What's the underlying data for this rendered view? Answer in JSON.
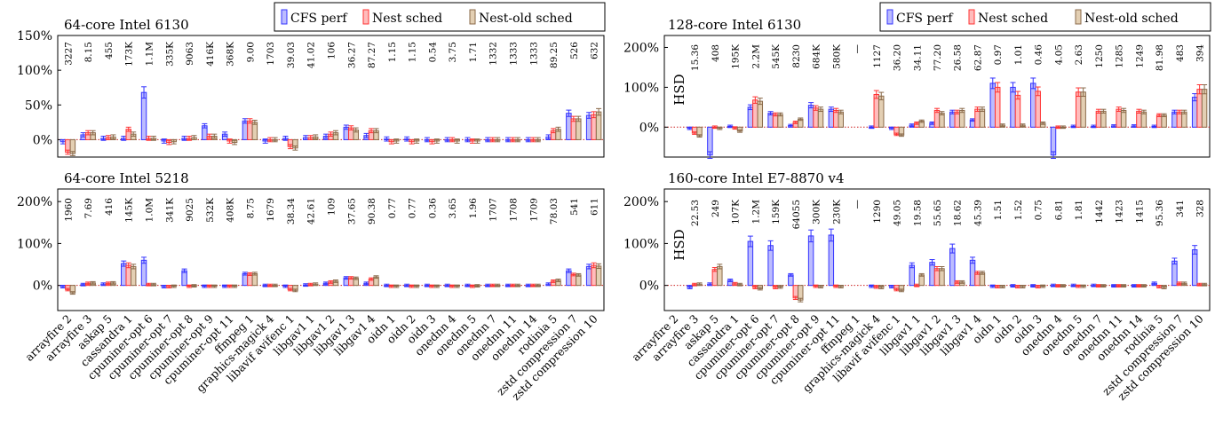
{
  "legend": {
    "items": [
      {
        "label": "CFS perf",
        "color": "#3333ff",
        "fill": "#bcbcff"
      },
      {
        "label": "Nest sched",
        "color": "#ff3333",
        "fill": "#ffbcbc"
      },
      {
        "label": "Nest-old sched",
        "color": "#8a6a4a",
        "fill": "#e3cfb3"
      }
    ]
  },
  "chart_data": [
    {
      "type": "bar",
      "title": "64-core Intel 6130",
      "ylim": [
        -25,
        150
      ],
      "yticks": [
        "150%",
        "100%",
        "50%",
        "0%"
      ],
      "categories": [
        "arrayfire 2",
        "arrayfire 3",
        "askap 5",
        "cassandra 1",
        "cpuminer-opt 6",
        "cpuminer-opt 7",
        "cpuminer-opt 8",
        "cpuminer-opt 9",
        "cpuminer-opt 11",
        "ffmpeg 1",
        "graphics-magick 4",
        "libavif avifenc 1",
        "libgav1 1",
        "libgav1 2",
        "libgav1 3",
        "libgav1 4",
        "oidn 1",
        "oidn 2",
        "oidn 3",
        "onednn 4",
        "onednn 5",
        "onednn 7",
        "onednn 11",
        "onednn 14",
        "rodinia 5",
        "zstd compression 7",
        "zstd compression 10"
      ],
      "value_labels": [
        "3227",
        "8.15",
        "455",
        "173K",
        "1.1M",
        "335K",
        "9063",
        "416K",
        "368K",
        "9.00",
        "1703",
        "39.03",
        "41.02",
        "106",
        "36.27",
        "87.27",
        "1.15",
        "1.15",
        "0.54",
        "3.75",
        "1.71",
        "1332",
        "1333",
        "1333",
        "89.25",
        "526",
        "632"
      ],
      "series": [
        {
          "name": "CFS perf",
          "values": [
            -3,
            7,
            2,
            2,
            68,
            -2,
            2,
            20,
            8,
            27,
            -2,
            2,
            3,
            5,
            18,
            6,
            1,
            1,
            0,
            0,
            0,
            0,
            0,
            0,
            4,
            38,
            35
          ]
        },
        {
          "name": "Nest sched",
          "values": [
            -18,
            10,
            3,
            15,
            2,
            -4,
            2,
            5,
            -2,
            27,
            0,
            -10,
            3,
            8,
            17,
            13,
            -3,
            -3,
            -3,
            0,
            -2,
            0,
            0,
            0,
            13,
            30,
            36
          ]
        },
        {
          "name": "Nest-old sched",
          "values": [
            -20,
            10,
            4,
            8,
            2,
            -3,
            3,
            5,
            -4,
            25,
            0,
            -12,
            4,
            10,
            14,
            13,
            -2,
            -2,
            -2,
            -2,
            -2,
            0,
            0,
            0,
            15,
            30,
            40
          ]
        }
      ]
    },
    {
      "type": "bar",
      "title": "128-core Intel 6130",
      "ylim": [
        -75,
        230
      ],
      "yticks": [
        "200%",
        "100%",
        "0%"
      ],
      "categories": [
        "arrayfire 2",
        "arrayfire 3",
        "askap 5",
        "cassandra 1",
        "cpuminer-opt 6",
        "cpuminer-opt 7",
        "cpuminer-opt 8",
        "cpuminer-opt 9",
        "cpuminer-opt 11",
        "ffmpeg 1",
        "graphics-magick 4",
        "libavif avifenc 1",
        "libgav1 1",
        "libgav1 2",
        "libgav1 3",
        "libgav1 4",
        "oidn 1",
        "oidn 2",
        "oidn 3",
        "onednn 4",
        "onednn 5",
        "onednn 7",
        "onednn 11",
        "onednn 14",
        "rodinia 5",
        "zstd compression 7",
        "zstd compression 10"
      ],
      "value_labels": [
        "HSD",
        "15.36",
        "408",
        "195K",
        "2.2M",
        "545K",
        "8230",
        "684K",
        "580K",
        "—",
        "1127",
        "36.20",
        "34.11",
        "77.20",
        "26.58",
        "62.87",
        "0.97",
        "1.01",
        "0.46",
        "4.05",
        "2.63",
        "1250",
        "1285",
        "1249",
        "81.98",
        "483",
        "394"
      ],
      "series": [
        {
          "name": "CFS perf",
          "values": [
            null,
            -3,
            -70,
            2,
            50,
            35,
            4,
            55,
            45,
            null,
            0,
            -3,
            5,
            10,
            38,
            18,
            110,
            100,
            110,
            -70,
            2,
            2,
            3,
            3,
            2,
            38,
            75
          ]
        },
        {
          "name": "Nest sched",
          "values": [
            null,
            -15,
            0,
            -2,
            68,
            32,
            12,
            48,
            42,
            null,
            82,
            -18,
            10,
            42,
            38,
            45,
            100,
            80,
            90,
            0,
            88,
            40,
            45,
            40,
            30,
            38,
            95
          ]
        },
        {
          "name": "Nest-old sched",
          "values": [
            null,
            -22,
            -3,
            -10,
            65,
            32,
            20,
            45,
            38,
            null,
            78,
            -20,
            15,
            35,
            42,
            45,
            5,
            5,
            10,
            0,
            88,
            40,
            42,
            38,
            30,
            38,
            95
          ]
        }
      ]
    },
    {
      "type": "bar",
      "title": "64-core Intel 5218",
      "ylim": [
        -60,
        230
      ],
      "yticks": [
        "200%",
        "100%",
        "0%"
      ],
      "categories": [
        "arrayfire 2",
        "arrayfire 3",
        "askap 5",
        "cassandra 1",
        "cpuminer-opt 6",
        "cpuminer-opt 7",
        "cpuminer-opt 8",
        "cpuminer-opt 9",
        "cpuminer-opt 11",
        "ffmpeg 1",
        "graphics-magick 4",
        "libavif avifenc 1",
        "libgav1 1",
        "libgav1 2",
        "libgav1 3",
        "libgav1 4",
        "oidn 1",
        "oidn 2",
        "oidn 3",
        "onednn 4",
        "onednn 5",
        "onednn 7",
        "onednn 11",
        "onednn 14",
        "rodinia 5",
        "zstd compression 7",
        "zstd compression 10"
      ],
      "value_labels": [
        "1960",
        "7.69",
        "416",
        "145K",
        "1.0M",
        "341K",
        "9025",
        "532K",
        "408K",
        "8.75",
        "1679",
        "38.34",
        "42.61",
        "109",
        "37.65",
        "90.38",
        "0.77",
        "0.77",
        "0.36",
        "3.65",
        "1.96",
        "1707",
        "1708",
        "1709",
        "78.03",
        "541",
        "611"
      ],
      "series": [
        {
          "name": "CFS perf",
          "values": [
            -3,
            2,
            3,
            52,
            60,
            -3,
            35,
            -2,
            -2,
            28,
            0,
            -2,
            1,
            5,
            18,
            5,
            0,
            0,
            0,
            0,
            0,
            0,
            0,
            0,
            3,
            35,
            45
          ]
        },
        {
          "name": "Nest sched",
          "values": [
            -10,
            5,
            5,
            48,
            2,
            -3,
            -2,
            -2,
            -2,
            27,
            0,
            -10,
            2,
            8,
            18,
            15,
            -2,
            -2,
            -2,
            -2,
            -2,
            0,
            0,
            0,
            10,
            26,
            48
          ]
        },
        {
          "name": "Nest-old sched",
          "values": [
            -18,
            6,
            6,
            45,
            2,
            -2,
            -1,
            -2,
            -2,
            28,
            0,
            -12,
            3,
            10,
            17,
            20,
            -2,
            -2,
            -2,
            -2,
            -1,
            0,
            0,
            0,
            12,
            25,
            46
          ]
        }
      ]
    },
    {
      "type": "bar",
      "title": "160-core Intel E7-8870 v4",
      "ylim": [
        -60,
        230
      ],
      "yticks": [
        "200%",
        "100%",
        "0%"
      ],
      "categories": [
        "arrayfire 2",
        "arrayfire 3",
        "askap 5",
        "cassandra 1",
        "cpuminer-opt 6",
        "cpuminer-opt 7",
        "cpuminer-opt 8",
        "cpuminer-opt 9",
        "cpuminer-opt 11",
        "ffmpeg 1",
        "graphics-magick 4",
        "libavif avifenc 1",
        "libgav1 1",
        "libgav1 2",
        "libgav1 3",
        "libgav1 4",
        "oidn 1",
        "oidn 2",
        "oidn 3",
        "onednn 4",
        "onednn 5",
        "onednn 7",
        "onednn 11",
        "onednn 14",
        "rodinia 5",
        "zstd compression 7",
        "zstd compression 10"
      ],
      "value_labels": [
        "HSD",
        "22.53",
        "249",
        "107K",
        "1.2M",
        "159K",
        "64055",
        "300K",
        "230K",
        "—",
        "1290",
        "49.05",
        "19.58",
        "55.65",
        "18.62",
        "45.39",
        "1.51",
        "1.52",
        "0.75",
        "6.81",
        "1.81",
        "1442",
        "1423",
        "1415",
        "95.36",
        "341",
        "328"
      ],
      "series": [
        {
          "name": "CFS perf",
          "values": [
            null,
            -5,
            3,
            12,
            105,
            95,
            25,
            118,
            120,
            null,
            -2,
            -3,
            48,
            55,
            88,
            60,
            -2,
            -1,
            -1,
            0,
            0,
            0,
            -1,
            -1,
            5,
            58,
            85
          ]
        },
        {
          "name": "Nest sched",
          "values": [
            null,
            2,
            38,
            4,
            -5,
            -5,
            -30,
            -2,
            -2,
            null,
            -4,
            -10,
            0,
            40,
            8,
            30,
            -3,
            -3,
            -3,
            -1,
            -2,
            -1,
            -1,
            -1,
            -3,
            5,
            2
          ]
        },
        {
          "name": "Nest-old sched",
          "values": [
            null,
            3,
            45,
            2,
            -8,
            -4,
            -35,
            -3,
            -3,
            null,
            -5,
            -12,
            25,
            40,
            8,
            30,
            -3,
            -3,
            -2,
            -1,
            -2,
            -1,
            -1,
            -1,
            -5,
            5,
            2
          ]
        }
      ]
    }
  ]
}
